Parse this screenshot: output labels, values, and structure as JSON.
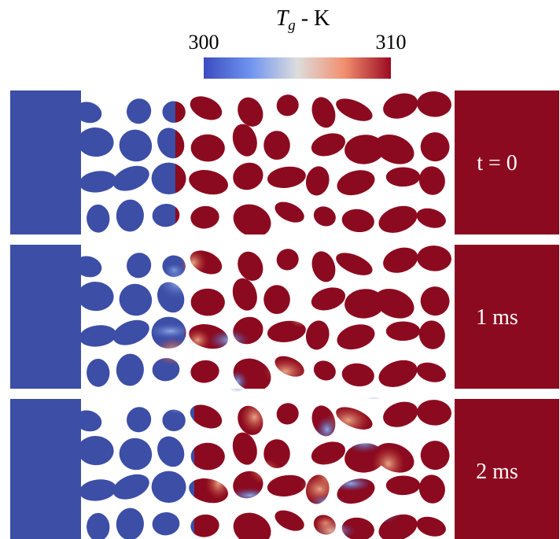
{
  "colorbar": {
    "label": "T",
    "label_subscript": "g",
    "label_rest": " - K",
    "min": 300,
    "max": 310
  },
  "panels": [
    {
      "label": "t = 0"
    },
    {
      "label": "1 ms"
    },
    {
      "label": "2 ms"
    }
  ]
}
